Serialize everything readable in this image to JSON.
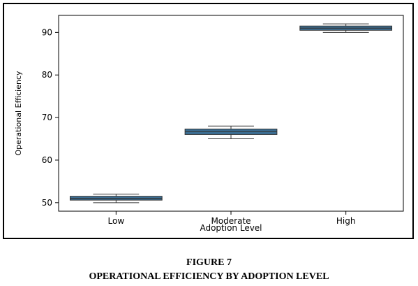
{
  "figure_number": "FIGURE 7",
  "figure_title": "OPERATIONAL EFFICIENCY BY ADOPTION LEVEL",
  "chart_data": {
    "type": "box",
    "xlabel": "Adoption Level",
    "ylabel": "Operational Efficiency",
    "ylim": [
      48,
      94
    ],
    "yticks": [
      50,
      60,
      70,
      80,
      90
    ],
    "categories": [
      "Low",
      "Moderate",
      "High"
    ],
    "boxes": [
      {
        "category": "Low",
        "min": 50,
        "q1": 50.6,
        "median": 51,
        "q3": 51.5,
        "max": 52
      },
      {
        "category": "Moderate",
        "min": 65,
        "q1": 66,
        "median": 66.7,
        "q3": 67.3,
        "max": 68
      },
      {
        "category": "High",
        "min": 90,
        "q1": 90.5,
        "median": 91,
        "q3": 91.5,
        "max": 92
      }
    ],
    "box_color": "#3b6e93",
    "grid": false
  }
}
